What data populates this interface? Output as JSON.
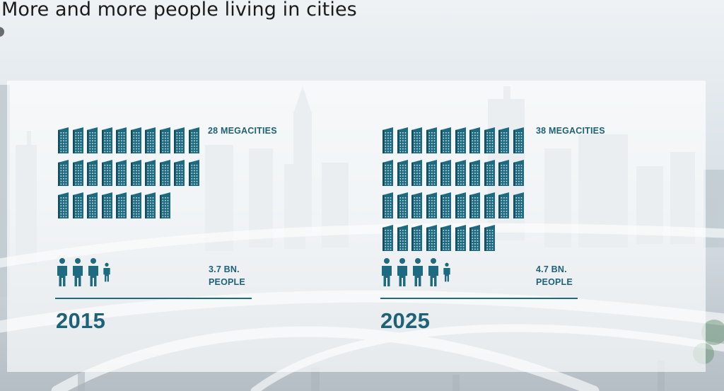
{
  "title": "More and more people living in cities",
  "accent_color": "#1e6a80",
  "building_icon": "building-icon",
  "person_icon": "person-icon",
  "panels": [
    {
      "megacities_count": 28,
      "megacities_label": "28 MEGACITIES",
      "people_billions": 3.7,
      "people_value": "3.7 BN.",
      "people_unit": "PEOPLE",
      "year": "2015"
    },
    {
      "megacities_count": 38,
      "megacities_label": "38 MEGACITIES",
      "people_billions": 4.7,
      "people_value": "4.7 BN.",
      "people_unit": "PEOPLE",
      "year": "2025"
    }
  ]
}
